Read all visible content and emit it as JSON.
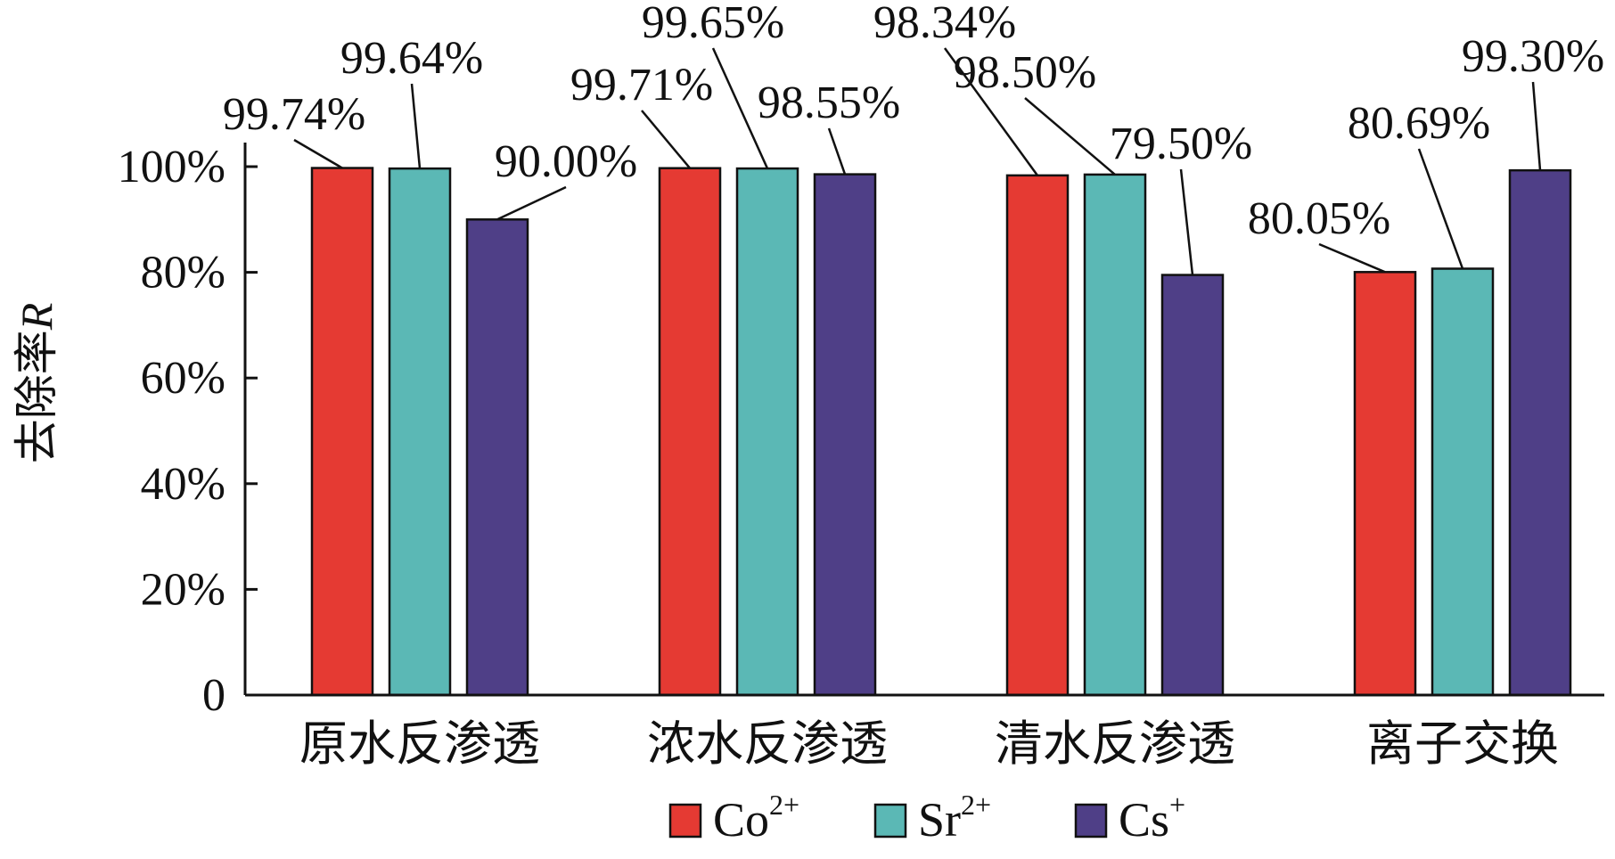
{
  "chart_data": {
    "type": "bar",
    "title": "",
    "xlabel": "",
    "ylabel": "去除率R",
    "ylabel_parts": {
      "text": "去除率",
      "italic": "R"
    },
    "ylim": [
      0,
      100
    ],
    "yticks": [
      {
        "value": 0,
        "label": "0"
      },
      {
        "value": 20,
        "label": "20%"
      },
      {
        "value": 40,
        "label": "40%"
      },
      {
        "value": 60,
        "label": "60%"
      },
      {
        "value": 80,
        "label": "80%"
      },
      {
        "value": 100,
        "label": "100%"
      }
    ],
    "categories": [
      "原水反渗透",
      "浓水反渗透",
      "清水反渗透",
      "离子交换"
    ],
    "series": [
      {
        "name": "Co2+",
        "base": "Co",
        "sup": "2+",
        "color": "#e53a33",
        "values": [
          99.74,
          99.71,
          98.34,
          80.05
        ],
        "labels": [
          "99.74%",
          "99.71%",
          "98.34%",
          "80.05%"
        ]
      },
      {
        "name": "Sr2+",
        "base": "Sr",
        "sup": "2+",
        "color": "#5bb8b5",
        "values": [
          99.64,
          99.65,
          98.5,
          80.69
        ],
        "labels": [
          "99.64%",
          "99.65%",
          "98.50%",
          "80.69%"
        ]
      },
      {
        "name": "Cs+",
        "base": "Cs",
        "sup": "+",
        "color": "#4f3f87",
        "values": [
          90.0,
          98.55,
          79.5,
          99.3
        ],
        "labels": [
          "90.00%",
          "98.55%",
          "79.50%",
          "99.30%"
        ]
      }
    ],
    "legend": "bottom-center",
    "grid": false
  }
}
